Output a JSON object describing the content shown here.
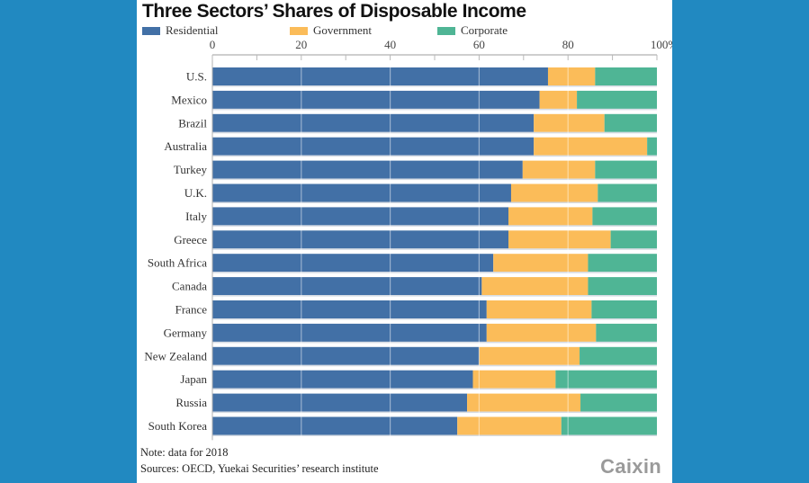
{
  "colors": {
    "background": "#2189c1",
    "residential": "#4270a6",
    "government": "#fbbc59",
    "corporate": "#4fb595"
  },
  "chart_data": {
    "type": "bar",
    "orientation": "horizontal",
    "stacked": true,
    "title": "Three Sectors’ Shares of Disposable Income",
    "xlabel": "",
    "ylabel": "",
    "xlim": [
      0,
      100
    ],
    "x_ticks": [
      "0",
      "20",
      "40",
      "60",
      "80",
      "100%"
    ],
    "x_tick_values": [
      0,
      20,
      40,
      60,
      80,
      100
    ],
    "grid": true,
    "legend_position": "top-left",
    "categories": [
      "U.S.",
      "Mexico",
      "Brazil",
      "Australia",
      "Turkey",
      "U.K.",
      "Italy",
      "Greece",
      "South Africa",
      "Canada",
      "France",
      "Germany",
      "New Zealand",
      "Japan",
      "Russia",
      "South Korea"
    ],
    "series": [
      {
        "name": "Residential",
        "color_key": "residential",
        "values": [
          75.5,
          73.6,
          72.3,
          72.3,
          69.8,
          67.2,
          66.6,
          66.6,
          63.2,
          60.6,
          61.7,
          61.7,
          60.0,
          58.6,
          57.3,
          55.1
        ]
      },
      {
        "name": "Government",
        "color_key": "government",
        "values": [
          10.6,
          8.4,
          15.9,
          25.5,
          16.3,
          19.5,
          18.9,
          23.0,
          21.3,
          23.9,
          23.6,
          24.6,
          22.6,
          18.6,
          25.5,
          23.4
        ]
      },
      {
        "name": "Corporate",
        "color_key": "corporate",
        "values": [
          13.9,
          18.0,
          11.8,
          2.2,
          13.9,
          13.3,
          14.5,
          10.4,
          15.5,
          15.5,
          14.7,
          13.7,
          17.4,
          22.8,
          17.2,
          21.5
        ]
      }
    ]
  },
  "legend": [
    {
      "label": "Residential",
      "color_key": "residential"
    },
    {
      "label": "Government",
      "color_key": "government"
    },
    {
      "label": "Corporate",
      "color_key": "corporate"
    }
  ],
  "footer": {
    "note": "Note: data for 2018",
    "sources": "Sources: OECD, Yuekai Securities’ research institute",
    "logo": "Caixin"
  }
}
